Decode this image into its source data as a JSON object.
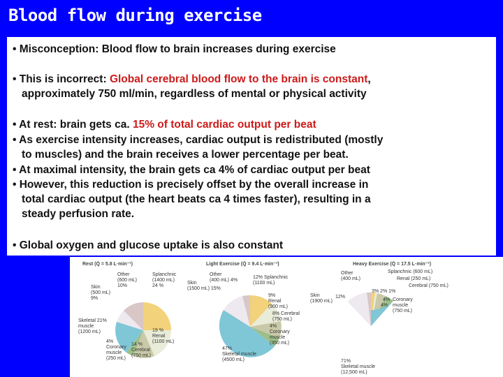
{
  "slide": {
    "title": "Blood flow during exercise",
    "bullets": [
      {
        "text": "• Misconception: Blood flow to brain increases during exercise"
      },
      {
        "pre": "• This is incorrect: ",
        "red": "Global cerebral blood flow to the brain is constant",
        "post": ","
      },
      {
        "text": "approximately 750 ml/min, regardless of mental or physical activity"
      },
      {
        "pre": "• At rest: brain gets ca. ",
        "red": "15% of total cardiac output per beat",
        "post": ""
      },
      {
        "text": "• As exercise intensity increases, cardiac output is redistributed (mostly"
      },
      {
        "text": "to muscles) and the brain receives a lower percentage per beat."
      },
      {
        "text": "• At maximal intensity, the brain gets ca 4% of cardiac output per beat"
      },
      {
        "text": "• However, this reduction is precisely offset by the overall increase in"
      },
      {
        "text": "total cardiac output (the heart beats ca 4 times faster), resulting in a"
      },
      {
        "text": "steady perfusion rate."
      },
      {
        "text": "• Global oxygen and glucose uptake is also constant"
      }
    ]
  },
  "figure": {
    "panels": [
      {
        "title": "Rest (Q̇ = 5.8 L·min⁻¹)",
        "labels": [
          "Other\n(600 mL)\n10%",
          "Splanchnic\n(1400 mL)\n24 %",
          "Skin\n(500 mL)\n9%",
          "Skeletal 21%\nmuscle\n(1200 mL)",
          "4%\nCoronary\nmuscle\n(250 mL)",
          "14 %\nCerebral\n(750 mL)",
          "19 %\nRenal\n(1100 mL)"
        ]
      },
      {
        "title": "Light Exercise (Q̇ = 9.4 L·min⁻¹)",
        "labels": [
          "Other\n(400 mL) 4%",
          "12% Splanchnic\n(1100 mL)",
          "Skin\n(1500 mL) 15%",
          "9%\nRenal\n(900 mL)",
          "8% Cerebral\n(750 mL)",
          "4%\nCoronary\nmuscle\n(350 mL)",
          "47%\nSkeletal muscle\n(4500 mL)"
        ]
      },
      {
        "title": "Heavy Exercise (Q̇ = 17.5 L·min⁻¹)",
        "labels": [
          "Other\n(400 mL)",
          "Splanchnic (600 mL)",
          "Renal (250 mL)",
          "Cerebral (750 mL)",
          "Skin\n(1900 mL)",
          "12%",
          "3% 2% 1%",
          "4%",
          "4%",
          "Coronary\nmuscle\n(750 mL)",
          "71%\nSkeletal muscle\n(12,500 mL)"
        ]
      }
    ]
  }
}
